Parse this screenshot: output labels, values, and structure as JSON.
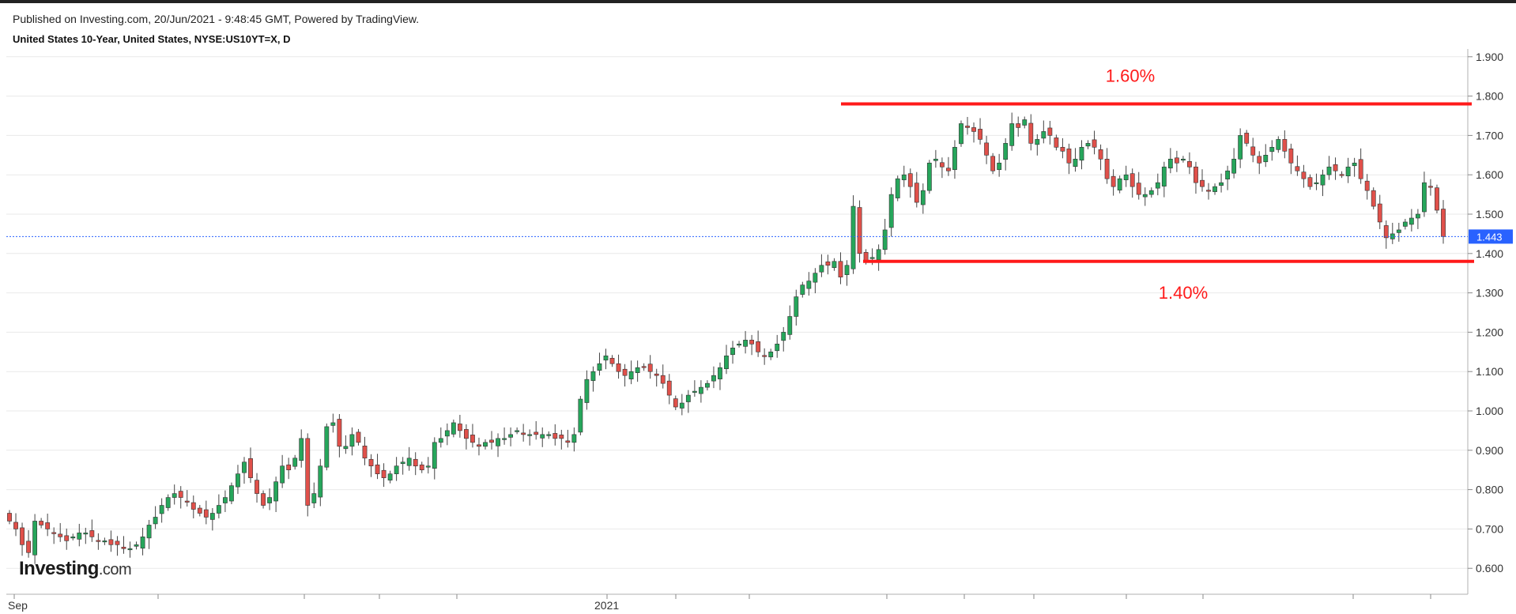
{
  "header": {
    "published": "Published on Investing.com, 20/Jun/2021 - 9:48:45 GMT, Powered by TradingView.",
    "instrument": "United States 10-Year, United States, NYSE:US10YT=X, D"
  },
  "logo": {
    "brand": "Investing",
    "suffix": ".com"
  },
  "colors": {
    "up": "#26a65b",
    "down": "#e0504a",
    "last": "#2962ff",
    "annotation": "#ff1a1a",
    "grid": "#e9e9e9"
  },
  "chart_data": {
    "type": "candlestick",
    "title": "United States 10-Year, United States, NYSE:US10YT=X, D",
    "ylim": [
      0.55,
      1.92
    ],
    "y_ticks": [
      "1.900",
      "1.800",
      "1.700",
      "1.600",
      "1.500",
      "1.400",
      "1.300",
      "1.200",
      "1.100",
      "1.000",
      "0.900",
      "0.800",
      "0.700",
      "0.600"
    ],
    "x_labels": [
      "Sep",
      "2021"
    ],
    "last_price": "1.443",
    "annotations": [
      {
        "label": "1.60%",
        "level": 1.78
      },
      {
        "label": "1.40%",
        "level": 1.38
      }
    ],
    "close_series": [
      0.72,
      0.7,
      0.66,
      0.64,
      0.72,
      0.71,
      0.7,
      0.69,
      0.68,
      0.67,
      0.68,
      0.69,
      0.69,
      0.68,
      0.67,
      0.67,
      0.66,
      0.66,
      0.65,
      0.65,
      0.66,
      0.68,
      0.71,
      0.73,
      0.76,
      0.78,
      0.79,
      0.78,
      0.77,
      0.75,
      0.74,
      0.73,
      0.74,
      0.76,
      0.78,
      0.81,
      0.84,
      0.87,
      0.83,
      0.79,
      0.76,
      0.78,
      0.82,
      0.86,
      0.85,
      0.88,
      0.93,
      0.76,
      0.79,
      0.86,
      0.96,
      0.97,
      0.91,
      0.91,
      0.94,
      0.92,
      0.88,
      0.86,
      0.84,
      0.83,
      0.84,
      0.86,
      0.87,
      0.88,
      0.86,
      0.85,
      0.86,
      0.92,
      0.93,
      0.95,
      0.97,
      0.95,
      0.93,
      0.92,
      0.91,
      0.92,
      0.92,
      0.93,
      0.93,
      0.94,
      0.95,
      0.94,
      0.94,
      0.94,
      0.94,
      0.94,
      0.93,
      0.93,
      0.92,
      0.94,
      1.03,
      1.08,
      1.1,
      1.12,
      1.14,
      1.12,
      1.1,
      1.09,
      1.1,
      1.11,
      1.11,
      1.1,
      1.09,
      1.07,
      1.04,
      1.01,
      1.02,
      1.04,
      1.05,
      1.06,
      1.07,
      1.09,
      1.11,
      1.14,
      1.16,
      1.17,
      1.18,
      1.17,
      1.15,
      1.14,
      1.15,
      1.17,
      1.2,
      1.24,
      1.29,
      1.32,
      1.33,
      1.35,
      1.37,
      1.37,
      1.38,
      1.34,
      1.37,
      1.52,
      1.4,
      1.38,
      1.39,
      1.41,
      1.46,
      1.55,
      1.59,
      1.6,
      1.57,
      1.53,
      1.56,
      1.63,
      1.64,
      1.62,
      1.61,
      1.67,
      1.73,
      1.72,
      1.71,
      1.69,
      1.65,
      1.61,
      1.63,
      1.68,
      1.73,
      1.72,
      1.74,
      1.68,
      1.69,
      1.71,
      1.7,
      1.67,
      1.66,
      1.63,
      1.64,
      1.67,
      1.68,
      1.67,
      1.64,
      1.59,
      1.57,
      1.59,
      1.6,
      1.57,
      1.55,
      1.55,
      1.56,
      1.58,
      1.62,
      1.64,
      1.63,
      1.64,
      1.62,
      1.58,
      1.57,
      1.56,
      1.57,
      1.58,
      1.61,
      1.64,
      1.7,
      1.68,
      1.65,
      1.63,
      1.65,
      1.67,
      1.69,
      1.66,
      1.63,
      1.61,
      1.59,
      1.57,
      1.58,
      1.6,
      1.62,
      1.61,
      1.6,
      1.62,
      1.63,
      1.59,
      1.56,
      1.52,
      1.48,
      1.44,
      1.45,
      1.46,
      1.48,
      1.49,
      1.5,
      1.58,
      1.57,
      1.51,
      1.443
    ]
  }
}
